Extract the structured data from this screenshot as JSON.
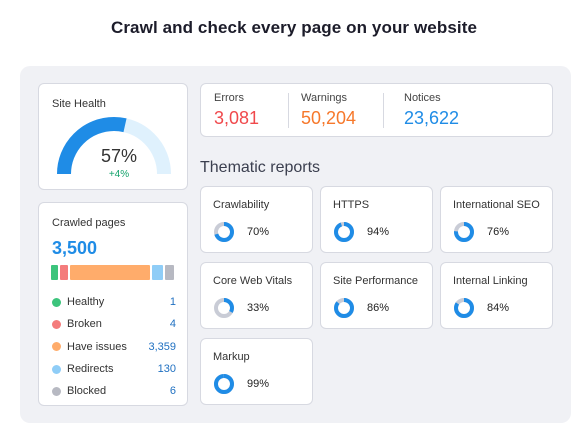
{
  "headline": "Crawl and check every page on your website",
  "site_health": {
    "label": "Site Health",
    "percent_text": "57%",
    "change": "+4%",
    "value": 57
  },
  "crawled": {
    "label": "Crawled pages",
    "total": "3,500",
    "items": [
      {
        "name": "Healthy",
        "value": "1",
        "color": "#3cc47c"
      },
      {
        "name": "Broken",
        "value": "4",
        "color": "#f47c7c"
      },
      {
        "name": "Have issues",
        "value": "3,359",
        "color": "#ffac6b"
      },
      {
        "name": "Redirects",
        "value": "130",
        "color": "#8fcdf7"
      },
      {
        "name": "Blocked",
        "value": "6",
        "color": "#b7b9c2"
      }
    ]
  },
  "issues": {
    "errors": {
      "label": "Errors",
      "value": "3,081",
      "color": "#f0494c"
    },
    "warnings": {
      "label": "Warnings",
      "value": "50,204",
      "color": "#f6782b"
    },
    "notices": {
      "label": "Notices",
      "value": "23,622",
      "color": "#1f8ce6"
    }
  },
  "thematic_title": "Thematic reports",
  "reports": [
    {
      "name": "Crawlability",
      "value": "70%",
      "pct": 70
    },
    {
      "name": "HTTPS",
      "value": "94%",
      "pct": 94
    },
    {
      "name": "International SEO",
      "value": "76%",
      "pct": 76
    },
    {
      "name": "Core Web Vitals",
      "value": "33%",
      "pct": 33
    },
    {
      "name": "Site Performance",
      "value": "86%",
      "pct": 86
    },
    {
      "name": "Internal Linking",
      "value": "84%",
      "pct": 84
    },
    {
      "name": "Markup",
      "value": "99%",
      "pct": 99
    }
  ]
}
